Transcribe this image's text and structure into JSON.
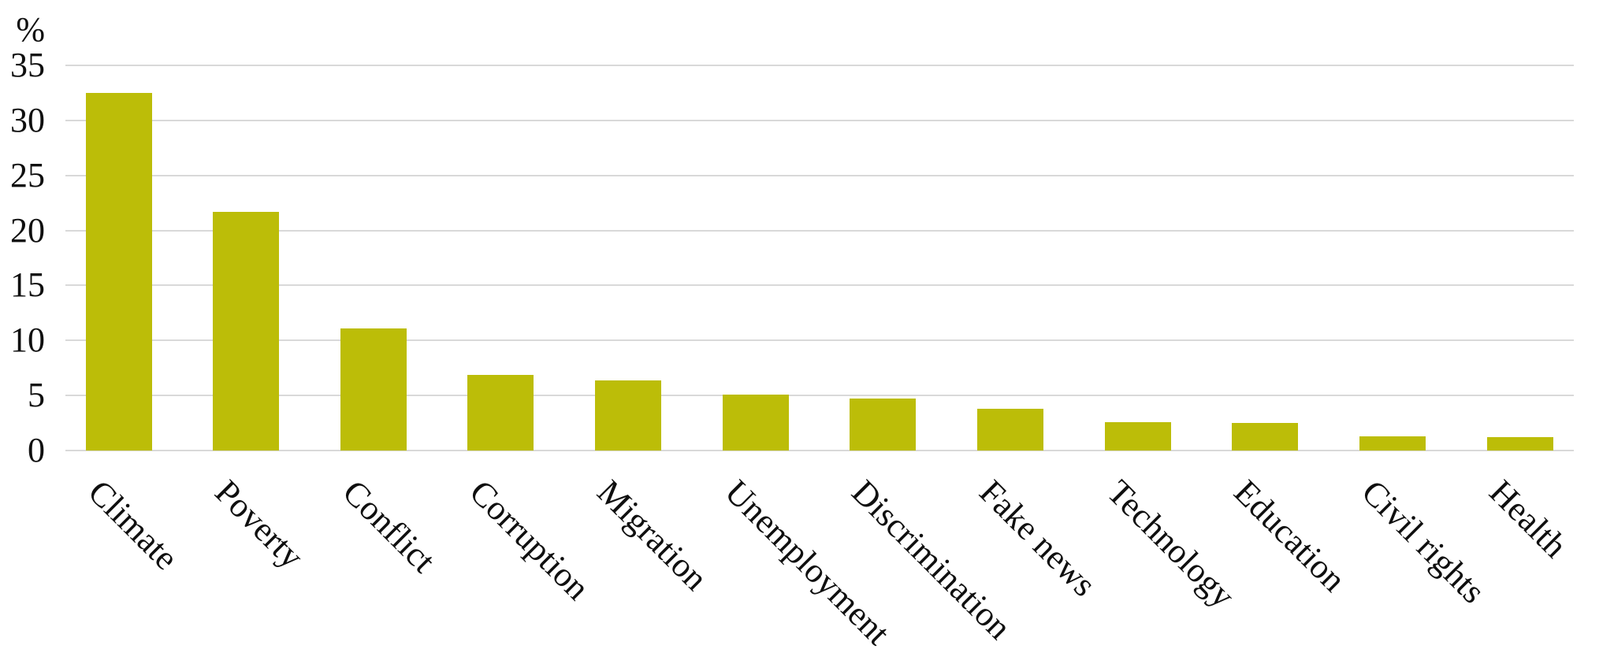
{
  "chart_data": {
    "type": "bar",
    "title": "",
    "ylabel": "%",
    "xlabel": "",
    "categories": [
      "Climate",
      "Poverty",
      "Conflict",
      "Corruption",
      "Migration",
      "Unemployment",
      "Discrimination",
      "Fake news",
      "Technology",
      "Education",
      "Civil rights",
      "Health"
    ],
    "values": [
      32.5,
      21.7,
      11.1,
      6.9,
      6.4,
      5.1,
      4.7,
      3.8,
      2.6,
      2.5,
      1.3,
      1.2
    ],
    "ylim": [
      0,
      35
    ],
    "ytick_step": 5,
    "ytick_labels": [
      "0",
      "5",
      "10",
      "15",
      "20",
      "25",
      "30",
      "35"
    ],
    "grid": "horizontal",
    "legend": "none",
    "bar_color": "#bcbd08",
    "gridline_color": "#d9d9d9",
    "text_color": "#0f0f0f",
    "background_color": "#ffffff",
    "x_label_rotation_deg": 45
  }
}
